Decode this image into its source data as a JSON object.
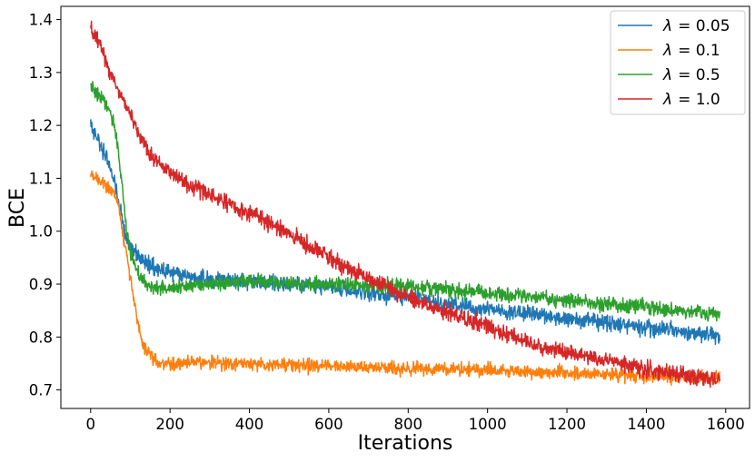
{
  "chart_data": {
    "type": "line",
    "title": "",
    "xlabel": "Iterations",
    "ylabel": "BCE",
    "xlim": [
      -75,
      1660
    ],
    "ylim": [
      0.665,
      1.425
    ],
    "grid": false,
    "legend_position": "top-right",
    "x_ticks": [
      0,
      200,
      400,
      600,
      800,
      1000,
      1200,
      1400,
      1600
    ],
    "y_ticks": [
      0.7,
      0.8,
      0.9,
      1.0,
      1.1,
      1.2,
      1.3,
      1.4
    ],
    "x_tick_labels": [
      "0",
      "200",
      "400",
      "600",
      "800",
      "1000",
      "1200",
      "1400",
      "1600"
    ],
    "y_tick_labels": [
      "0.7",
      "0.8",
      "0.9",
      "1.0",
      "1.1",
      "1.2",
      "1.3",
      "1.4"
    ],
    "x_range": [
      0,
      1585
    ],
    "series": [
      {
        "name": "λ = 0.05",
        "legend_symbol": "λ",
        "legend_value": "= 0.05",
        "color": "#1f77b4",
        "noise": 0.013,
        "points": [
          [
            0,
            1.205
          ],
          [
            20,
            1.17
          ],
          [
            40,
            1.14
          ],
          [
            60,
            1.09
          ],
          [
            75,
            1.04
          ],
          [
            85,
            1.0
          ],
          [
            100,
            0.97
          ],
          [
            130,
            0.945
          ],
          [
            160,
            0.93
          ],
          [
            200,
            0.92
          ],
          [
            300,
            0.91
          ],
          [
            400,
            0.905
          ],
          [
            500,
            0.9
          ],
          [
            600,
            0.895
          ],
          [
            700,
            0.885
          ],
          [
            800,
            0.875
          ],
          [
            900,
            0.862
          ],
          [
            1000,
            0.852
          ],
          [
            1100,
            0.845
          ],
          [
            1200,
            0.836
          ],
          [
            1300,
            0.826
          ],
          [
            1400,
            0.818
          ],
          [
            1500,
            0.81
          ],
          [
            1585,
            0.8
          ]
        ]
      },
      {
        "name": "λ = 0.1",
        "legend_symbol": "λ",
        "legend_value": "= 0.1",
        "color": "#ff7f0e",
        "noise": 0.011,
        "points": [
          [
            0,
            1.105
          ],
          [
            30,
            1.095
          ],
          [
            60,
            1.07
          ],
          [
            70,
            1.05
          ],
          [
            80,
            1.0
          ],
          [
            90,
            0.96
          ],
          [
            100,
            0.91
          ],
          [
            110,
            0.86
          ],
          [
            120,
            0.82
          ],
          [
            130,
            0.79
          ],
          [
            150,
            0.765
          ],
          [
            170,
            0.752
          ],
          [
            200,
            0.75
          ],
          [
            300,
            0.752
          ],
          [
            400,
            0.75
          ],
          [
            500,
            0.747
          ],
          [
            600,
            0.745
          ],
          [
            700,
            0.743
          ],
          [
            800,
            0.741
          ],
          [
            900,
            0.74
          ],
          [
            1000,
            0.738
          ],
          [
            1100,
            0.735
          ],
          [
            1200,
            0.732
          ],
          [
            1300,
            0.729
          ],
          [
            1400,
            0.727
          ],
          [
            1500,
            0.725
          ],
          [
            1585,
            0.724
          ]
        ]
      },
      {
        "name": "λ = 0.5",
        "legend_symbol": "λ",
        "legend_value": "= 0.5",
        "color": "#2ca02c",
        "noise": 0.012,
        "points": [
          [
            0,
            1.275
          ],
          [
            20,
            1.26
          ],
          [
            40,
            1.24
          ],
          [
            60,
            1.2
          ],
          [
            70,
            1.15
          ],
          [
            80,
            1.08
          ],
          [
            90,
            1.01
          ],
          [
            100,
            0.96
          ],
          [
            115,
            0.93
          ],
          [
            130,
            0.91
          ],
          [
            150,
            0.895
          ],
          [
            200,
            0.895
          ],
          [
            300,
            0.9
          ],
          [
            400,
            0.905
          ],
          [
            500,
            0.902
          ],
          [
            600,
            0.9
          ],
          [
            700,
            0.898
          ],
          [
            800,
            0.895
          ],
          [
            900,
            0.89
          ],
          [
            1000,
            0.882
          ],
          [
            1100,
            0.876
          ],
          [
            1200,
            0.87
          ],
          [
            1300,
            0.863
          ],
          [
            1400,
            0.856
          ],
          [
            1500,
            0.848
          ],
          [
            1585,
            0.843
          ]
        ]
      },
      {
        "name": "λ = 1.0",
        "legend_symbol": "λ",
        "legend_value": "= 1.0",
        "color": "#d62728",
        "noise": 0.014,
        "points": [
          [
            0,
            1.385
          ],
          [
            20,
            1.36
          ],
          [
            40,
            1.32
          ],
          [
            60,
            1.28
          ],
          [
            80,
            1.25
          ],
          [
            100,
            1.22
          ],
          [
            120,
            1.185
          ],
          [
            150,
            1.145
          ],
          [
            200,
            1.11
          ],
          [
            300,
            1.07
          ],
          [
            400,
            1.035
          ],
          [
            500,
            0.995
          ],
          [
            600,
            0.95
          ],
          [
            700,
            0.91
          ],
          [
            800,
            0.875
          ],
          [
            900,
            0.845
          ],
          [
            1000,
            0.82
          ],
          [
            1100,
            0.79
          ],
          [
            1200,
            0.77
          ],
          [
            1300,
            0.755
          ],
          [
            1400,
            0.74
          ],
          [
            1500,
            0.728
          ],
          [
            1585,
            0.72
          ]
        ]
      }
    ]
  }
}
